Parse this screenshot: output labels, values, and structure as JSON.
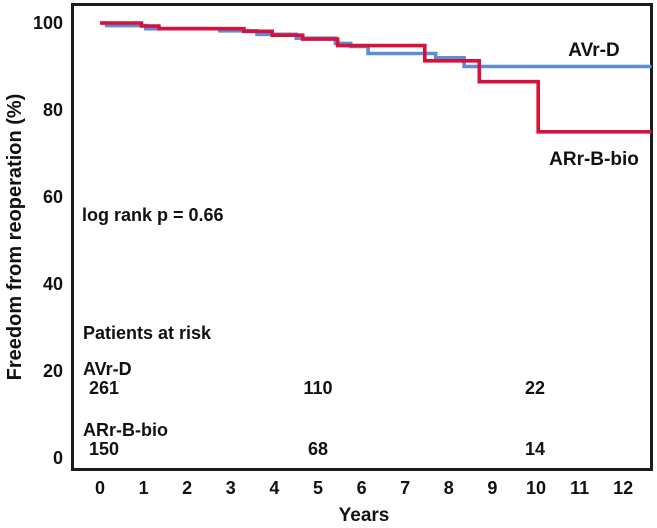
{
  "figure": {
    "y_axis_title": "Freedom from reoperation (%)",
    "x_axis_title": "Years",
    "log_rank_annotation": "log rank p = 0.66",
    "curve_label_blue": "AVr-D",
    "curve_label_red": "ARr-B-bio"
  },
  "colors": {
    "blue_curve": "#5b8ed6",
    "red_curve": "#d8113a",
    "axis": "#1c1c1c",
    "text": "#111111",
    "background": "#ffffff"
  },
  "at_risk": {
    "title": "Patients at risk",
    "rows": [
      {
        "label": "AVr-D",
        "counts": [
          "261",
          "110",
          "22"
        ]
      },
      {
        "label": "ARr-B-bio",
        "counts": [
          "150",
          "68",
          "14"
        ]
      }
    ],
    "count_positions_years": [
      0,
      5,
      10
    ]
  },
  "chart_data": {
    "type": "line",
    "subtype": "kaplan-meier-step",
    "title": "",
    "xlabel": "Years",
    "ylabel": "Freedom from reoperation (%)",
    "xlim": [
      -0.65,
      12.65
    ],
    "ylim": [
      0,
      105
    ],
    "xticks": [
      0,
      1,
      2,
      3,
      4,
      5,
      6,
      7,
      8,
      9,
      10,
      11,
      12
    ],
    "yticks": [
      0,
      20,
      40,
      60,
      80,
      100
    ],
    "grid": false,
    "legend_position": "labels-on-plot",
    "annotation": "log rank p = 0.66",
    "series": [
      {
        "name": "AVr-D",
        "color": "#5b8ed6",
        "steps": [
          [
            0,
            100
          ],
          [
            0.15,
            99.4
          ],
          [
            1.05,
            98.7
          ],
          [
            2.75,
            98.2
          ],
          [
            3.6,
            97.4
          ],
          [
            4.5,
            96.5
          ],
          [
            5.4,
            95.3
          ],
          [
            5.75,
            94.6
          ],
          [
            6.15,
            93
          ],
          [
            7.7,
            92
          ],
          [
            8.35,
            90
          ],
          [
            12.65,
            90
          ]
        ]
      },
      {
        "name": "ARr-B-bio",
        "color": "#d8113a",
        "steps": [
          [
            0,
            100
          ],
          [
            0.95,
            99.3
          ],
          [
            1.35,
            98.7
          ],
          [
            3.3,
            98.1
          ],
          [
            3.95,
            97.2
          ],
          [
            4.65,
            96.3
          ],
          [
            5.45,
            94.8
          ],
          [
            7.45,
            91.3
          ],
          [
            8.7,
            86.5
          ],
          [
            10.05,
            75
          ],
          [
            12.65,
            75
          ]
        ]
      }
    ],
    "at_risk_table": {
      "times": [
        0,
        5,
        10
      ],
      "AVr-D": [
        261,
        110,
        22
      ],
      "ARr-B-bio": [
        150,
        68,
        14
      ]
    }
  }
}
